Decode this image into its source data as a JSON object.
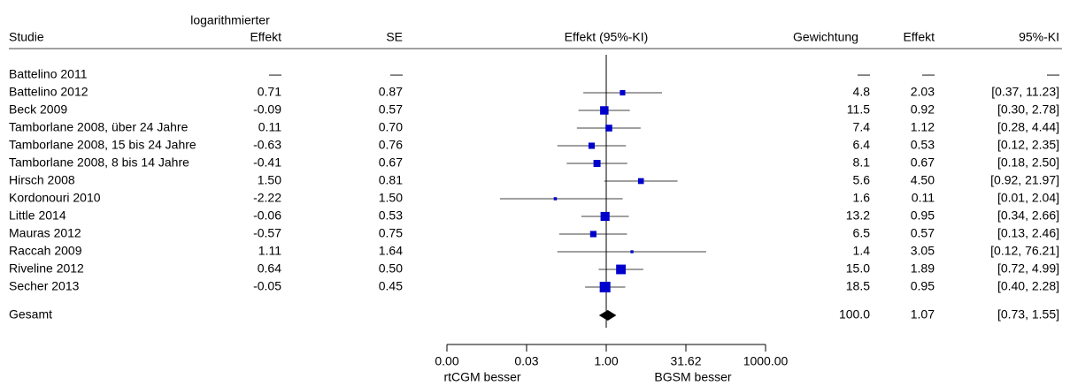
{
  "chart_data": {
    "type": "forest",
    "headers": {
      "study": "Studie",
      "log_effect_top": "logarithmierter",
      "log_effect": "Effekt",
      "se": "SE",
      "plot": "Effekt (95%-KI)",
      "weight": "Gewichtung",
      "effect": "Effekt",
      "ci": "95%-KI"
    },
    "rows": [
      {
        "name": "Battelino 2011",
        "log_effect": "—",
        "se": "—",
        "weight": null,
        "weight_label": "—",
        "effect": null,
        "effect_label": "—",
        "ci": [
          null,
          null
        ],
        "ci_label": "—"
      },
      {
        "name": "Battelino 2012",
        "log_effect": "0.71",
        "se": "0.87",
        "weight": 4.8,
        "effect": 2.03,
        "ci": [
          0.37,
          11.23
        ],
        "ci_label": "[0.37, 11.23]"
      },
      {
        "name": "Beck 2009",
        "log_effect": "-0.09",
        "se": "0.57",
        "weight": 11.5,
        "effect": 0.92,
        "ci": [
          0.3,
          2.78
        ],
        "ci_label": "[0.30, 2.78]"
      },
      {
        "name": "Tamborlane 2008, über 24 Jahre",
        "log_effect": "0.11",
        "se": "0.70",
        "weight": 7.4,
        "effect": 1.12,
        "ci": [
          0.28,
          4.44
        ],
        "ci_label": "[0.28, 4.44]"
      },
      {
        "name": "Tamborlane 2008, 15 bis 24 Jahre",
        "log_effect": "-0.63",
        "se": "0.76",
        "weight": 6.4,
        "effect": 0.53,
        "ci": [
          0.12,
          2.35
        ],
        "ci_label": "[0.12, 2.35]"
      },
      {
        "name": "Tamborlane 2008, 8 bis 14 Jahre",
        "log_effect": "-0.41",
        "se": "0.67",
        "weight": 8.1,
        "effect": 0.67,
        "ci": [
          0.18,
          2.5
        ],
        "ci_label": "[0.18, 2.50]"
      },
      {
        "name": "Hirsch 2008",
        "log_effect": "1.50",
        "se": "0.81",
        "weight": 5.6,
        "effect": 4.5,
        "effect_label": "4.50",
        "ci": [
          0.92,
          21.97
        ],
        "ci_label": "[0.92, 21.97]"
      },
      {
        "name": "Kordonouri 2010",
        "log_effect": "-2.22",
        "se": "1.50",
        "weight": 1.6,
        "effect": 0.11,
        "ci": [
          0.01,
          2.04
        ],
        "ci_label": "[0.01, 2.04]"
      },
      {
        "name": "Little 2014",
        "log_effect": "-0.06",
        "se": "0.53",
        "weight": 13.2,
        "effect": 0.95,
        "ci": [
          0.34,
          2.66
        ],
        "ci_label": "[0.34, 2.66]"
      },
      {
        "name": "Mauras 2012",
        "log_effect": "-0.57",
        "se": "0.75",
        "weight": 6.5,
        "effect": 0.57,
        "ci": [
          0.13,
          2.46
        ],
        "ci_label": "[0.13, 2.46]"
      },
      {
        "name": "Raccah 2009",
        "log_effect": "1.11",
        "se": "1.64",
        "weight": 1.4,
        "effect": 3.05,
        "ci": [
          0.12,
          76.21
        ],
        "ci_label": "[0.12, 76.21]"
      },
      {
        "name": "Riveline 2012",
        "log_effect": "0.64",
        "se": "0.50",
        "weight": 15.0,
        "weight_label": "15.0",
        "effect": 1.89,
        "ci": [
          0.72,
          4.99
        ],
        "ci_label": "[0.72, 4.99]"
      },
      {
        "name": "Secher 2013",
        "log_effect": "-0.05",
        "se": "0.45",
        "weight": 18.5,
        "effect": 0.95,
        "ci": [
          0.4,
          2.28
        ],
        "ci_label": "[0.40, 2.28]"
      }
    ],
    "overall": {
      "name": "Gesamt",
      "weight": 100.0,
      "weight_label": "100.0",
      "effect": 1.07,
      "ci": [
        0.73,
        1.55
      ],
      "ci_label": "[0.73, 1.55]"
    },
    "xlim": [
      0.001,
      1000
    ],
    "xticks": [
      {
        "value": 0.001,
        "label": "0.00"
      },
      {
        "value": 0.0316,
        "label": "0.03"
      },
      {
        "value": 1,
        "label": "1.00"
      },
      31.62,
      {
        "value": 1000,
        "label": "1000.00"
      }
    ],
    "xscale": "log",
    "reference": 1,
    "x_annotations": [
      "rtCGM besser",
      "BGSM besser"
    ],
    "color": "#0000cc"
  }
}
